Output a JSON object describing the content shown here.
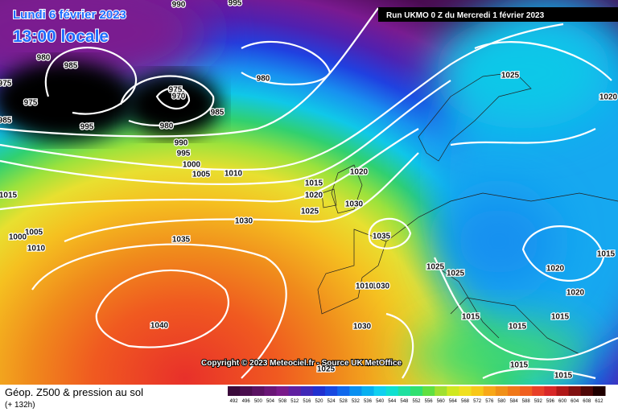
{
  "header": {
    "date": "Lundi 6 février 2023",
    "time": "13:00 locale",
    "run": "Run UKMO 0 Z du Mercredi 1 février 2023"
  },
  "map": {
    "copyright": "Copyright © 2023 Meteociel.fr - Source UK MetOffice",
    "isobar_labels": [
      990,
      995,
      980,
      985,
      975,
      975,
      985,
      995,
      975,
      970,
      980,
      985,
      980,
      990,
      995,
      1000,
      1005,
      1010,
      1015,
      1005,
      1000,
      1010,
      1035,
      1030,
      1040,
      1025,
      1020,
      1015,
      1020,
      1030,
      1035,
      1025,
      1020,
      1025,
      1025,
      1030,
      1010,
      1030,
      1015,
      1015,
      1015,
      1020,
      1020,
      1015,
      1015,
      1015,
      1025
    ]
  },
  "footer": {
    "title": "Géop. Z500 & pression au sol",
    "lead": "(+ 132h)",
    "scale": {
      "values": [
        492,
        496,
        500,
        504,
        508,
        512,
        516,
        520,
        524,
        528,
        532,
        536,
        540,
        544,
        548,
        552,
        556,
        560,
        564,
        568,
        572,
        576,
        580,
        584,
        588,
        592,
        596,
        600,
        604,
        608,
        612
      ],
      "colors": [
        "#3a0a3a",
        "#4a0e4e",
        "#5a1262",
        "#6a1676",
        "#7a1a8a",
        "#6020a0",
        "#4028b8",
        "#2030d0",
        "#1848e0",
        "#1068ec",
        "#0a90f0",
        "#08b0f0",
        "#10d0f0",
        "#10e0d0",
        "#20e0a0",
        "#30e070",
        "#60e040",
        "#a0e030",
        "#d0e820",
        "#f0e020",
        "#f8c818",
        "#f8a818",
        "#f09018",
        "#f07818",
        "#f06020",
        "#e84028",
        "#d82828",
        "#b01818",
        "#801010",
        "#500808",
        "#200000"
      ]
    }
  }
}
